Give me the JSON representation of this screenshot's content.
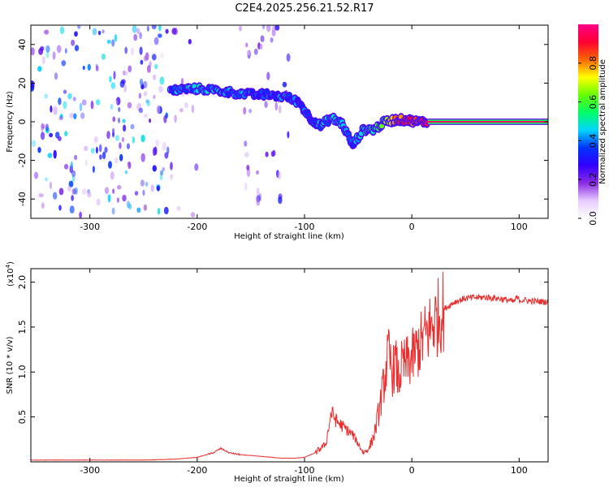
{
  "title": "C2E4.2025.256.21.52.R17",
  "chart_data": [
    {
      "type": "heatmap",
      "xlabel": "Height of straight line (km)",
      "ylabel": "Frequency (Hz)",
      "xlim": [
        -355,
        127
      ],
      "ylim": [
        -50,
        50
      ],
      "xticks": [
        -300,
        -200,
        -100,
        0,
        100
      ],
      "yticks": [
        -40,
        -20,
        0,
        20,
        40
      ],
      "colorbar": {
        "label": "Normalized spectral amplitude",
        "range": [
          0,
          1
        ],
        "ticks": [
          "0.0",
          "0.2",
          "0.4",
          "0.6",
          "0.8"
        ],
        "tick_values": [
          0,
          0.2,
          0.4,
          0.6,
          0.8
        ],
        "colors": [
          "#ffffff",
          "#e6ccff",
          "#8a2be2",
          "#3300ff",
          "#0033ff",
          "#00d4ff",
          "#00ff66",
          "#66ff00",
          "#ffff00",
          "#ff6600",
          "#ff0033",
          "#ff0088"
        ]
      },
      "noise_regions": [
        {
          "x": [
            -355,
            -225
          ],
          "amplitude": 0.3
        },
        {
          "x": [
            -225,
            -200
          ],
          "amplitude": 0.12
        },
        {
          "x": [
            -160,
            -115
          ],
          "amplitude": 0.18
        }
      ],
      "ridge": [
        {
          "x": -225,
          "f": 16,
          "a": 0.38
        },
        {
          "x": -210,
          "f": 17,
          "a": 0.42
        },
        {
          "x": -195,
          "f": 17,
          "a": 0.45
        },
        {
          "x": -180,
          "f": 16,
          "a": 0.42
        },
        {
          "x": -165,
          "f": 15,
          "a": 0.4
        },
        {
          "x": -150,
          "f": 14,
          "a": 0.38
        },
        {
          "x": -135,
          "f": 14,
          "a": 0.35
        },
        {
          "x": -118,
          "f": 13,
          "a": 0.38
        },
        {
          "x": -105,
          "f": 10,
          "a": 0.36
        },
        {
          "x": -95,
          "f": 2,
          "a": 0.36
        },
        {
          "x": -85,
          "f": -2,
          "a": 0.4
        },
        {
          "x": -75,
          "f": 2,
          "a": 0.45
        },
        {
          "x": -65,
          "f": -1,
          "a": 0.45
        },
        {
          "x": -55,
          "f": -12,
          "a": 0.34
        },
        {
          "x": -45,
          "f": -4,
          "a": 0.5
        },
        {
          "x": -35,
          "f": -4,
          "a": 0.55
        },
        {
          "x": -25,
          "f": 0,
          "a": 0.6
        },
        {
          "x": -15,
          "f": 1,
          "a": 0.8
        },
        {
          "x": -5,
          "f": 1,
          "a": 0.9
        },
        {
          "x": 5,
          "f": 0,
          "a": 0.8
        },
        {
          "x": 15,
          "f": 0,
          "a": 0.95
        },
        {
          "x": 127,
          "f": 0,
          "a": 0.95
        }
      ]
    },
    {
      "type": "line",
      "xlabel": "Height of straight line (km)",
      "ylabel": "SNR (10 * v/v)",
      "scale_label": "(x10^4)",
      "scale_text": "(x10",
      "scale_exponent": "4",
      "xlim": [
        -355,
        127
      ],
      "ylim": [
        0,
        2.15
      ],
      "xticks": [
        -300,
        -200,
        -100,
        0,
        100
      ],
      "yticks": [
        0.5,
        1.0,
        1.5,
        2.0
      ],
      "color": "#e83030",
      "series": [
        {
          "name": "SNR",
          "x": [
            -355,
            -300,
            -250,
            -220,
            -200,
            -185,
            -178,
            -170,
            -160,
            -150,
            -140,
            -120,
            -110,
            -100,
            -90,
            -80,
            -75,
            -70,
            -65,
            -60,
            -55,
            -50,
            -45,
            -40,
            -35,
            -30,
            -25,
            -22,
            -18,
            -15,
            -12,
            -10,
            -5,
            0,
            5,
            10,
            15,
            20,
            25,
            30,
            40,
            50,
            60,
            70,
            80,
            90,
            95,
            98,
            100,
            105,
            110,
            127
          ],
          "y": [
            0.02,
            0.02,
            0.02,
            0.03,
            0.05,
            0.1,
            0.15,
            0.1,
            0.08,
            0.07,
            0.06,
            0.04,
            0.04,
            0.05,
            0.1,
            0.2,
            0.55,
            0.45,
            0.4,
            0.35,
            0.3,
            0.2,
            0.1,
            0.15,
            0.3,
            0.6,
            0.95,
            1.2,
            1.0,
            1.1,
            0.9,
            1.05,
            1.1,
            1.15,
            1.25,
            1.35,
            1.45,
            1.55,
            1.62,
            1.7,
            1.78,
            1.82,
            1.83,
            1.83,
            1.82,
            1.8,
            1.78,
            1.83,
            1.8,
            1.8,
            1.79,
            1.78
          ]
        }
      ]
    }
  ]
}
